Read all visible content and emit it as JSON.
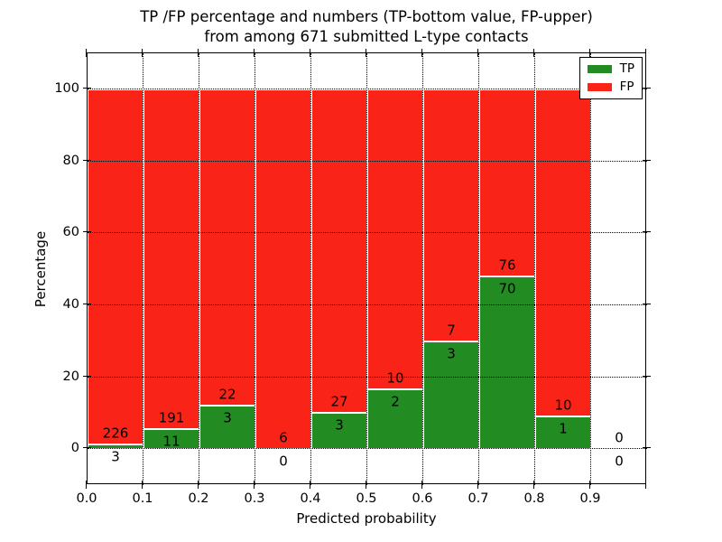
{
  "title": {
    "line1": "TP /FP percentage and numbers (TP-bottom value, FP-upper)",
    "line2": "from among 671 submitted L-type contacts"
  },
  "axes": {
    "xlabel": "Predicted probability",
    "ylabel": "Percentage",
    "xtick_labels": [
      "0.0",
      "0.1",
      "0.2",
      "0.3",
      "0.4",
      "0.5",
      "0.6",
      "0.7",
      "0.8",
      "0.9"
    ],
    "ytick_labels": [
      "0",
      "20",
      "40",
      "60",
      "80",
      "100"
    ]
  },
  "legend": {
    "entries": [
      {
        "label": "TP",
        "color": "#228b22"
      },
      {
        "label": "FP",
        "color": "#fa2317"
      }
    ],
    "position": "upper right"
  },
  "colors": {
    "tp": "#228b22",
    "fp": "#fa2317",
    "bar_edge": "#ffffff",
    "grid": "#000000",
    "text": "#000000",
    "background": "#ffffff"
  },
  "chart_data": {
    "type": "bar",
    "stacked": true,
    "normalized_to_percent": 100,
    "title": "TP /FP percentage and numbers (TP-bottom value, FP-upper) from among 671 submitted L-type contacts",
    "xlabel": "Predicted probability",
    "ylabel": "Percentage",
    "total_contacts": 671,
    "bin_edges": [
      0.0,
      0.1,
      0.2,
      0.3,
      0.4,
      0.5,
      0.6,
      0.7,
      0.8,
      0.9,
      1.0
    ],
    "categories": [
      "0.0-0.1",
      "0.1-0.2",
      "0.2-0.3",
      "0.3-0.4",
      "0.4-0.5",
      "0.5-0.6",
      "0.6-0.7",
      "0.7-0.8",
      "0.8-0.9",
      "0.9-1.0"
    ],
    "series": [
      {
        "name": "TP",
        "color": "#228b22",
        "values": [
          3,
          11,
          3,
          0,
          3,
          2,
          3,
          70,
          1,
          0
        ]
      },
      {
        "name": "FP",
        "color": "#fa2317",
        "values": [
          226,
          191,
          22,
          6,
          27,
          10,
          7,
          76,
          10,
          0
        ]
      }
    ],
    "tp_percent_heights": [
      1.31,
      5.45,
      12.0,
      0.0,
      10.0,
      16.67,
      30.0,
      47.95,
      9.09,
      0.0
    ],
    "xlim": [
      0.0,
      1.0
    ],
    "ylim": [
      -10,
      110
    ],
    "yticks": [
      0,
      20,
      40,
      60,
      80,
      100
    ],
    "grid": true,
    "grid_style": "dotted",
    "legend_position": "upper right"
  }
}
